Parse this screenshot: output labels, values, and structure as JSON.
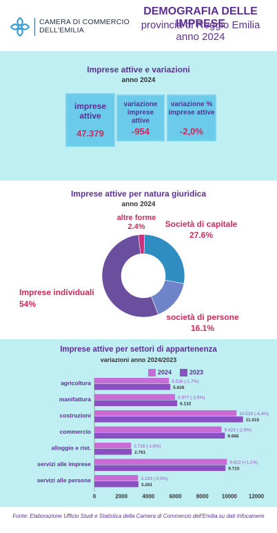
{
  "header": {
    "org_line1": "CAMERA DI COMMERCIO",
    "org_line2": "DELL'EMILIA",
    "title": "DEMOGRAFIA DELLE IMPRESE",
    "subtitle1": "provincia di Reggio Emilia",
    "subtitle2": "anno 2024"
  },
  "panel1": {
    "title": "Imprese attive e variazioni",
    "subtitle": "anno 2024",
    "kpis": [
      {
        "label": "imprese attive",
        "value": "47.379"
      },
      {
        "label": "variazione imprese attive",
        "value": "-954"
      },
      {
        "label": "variazione % imprese attive",
        "value": "-2,0%"
      }
    ]
  },
  "panel2": {
    "title": "Imprese attive per natura giuridica",
    "subtitle": "anno 2024"
  },
  "panel3": {
    "title": "Imprese attive per settori di appartenenza",
    "subtitle": "variazioni anno 2024/2023"
  },
  "footer": "Fonte: Elaborazione Ufficio Studi e Statistica della Camera di Commercio dell'Emilia su dati Infocamere",
  "chart_data": [
    {
      "type": "pie",
      "title": "Imprese attive per natura giuridica",
      "subtitle": "anno 2024",
      "slices": [
        {
          "name": "Società di capitale",
          "value": 27.6,
          "label": "27.6%",
          "color": "#2f8dc2"
        },
        {
          "name": "società di persone",
          "value": 16.1,
          "label": "16.1%",
          "color": "#6f84c8"
        },
        {
          "name": "Imprese individuali",
          "value": 54,
          "label": "54%",
          "color": "#6a4f9e"
        },
        {
          "name": "altre forme",
          "value": 2.4,
          "label": "2.4%",
          "color": "#c8307a"
        }
      ]
    },
    {
      "type": "bar",
      "orientation": "horizontal",
      "title": "Imprese attive per settori di appartenenza",
      "subtitle": "variazioni anno 2024/2023",
      "categories": [
        "agricoltura",
        "manifattura",
        "costruzioni",
        "commercio",
        "alloggio e rist.",
        "servizi alle imprese",
        "servizi alle persone"
      ],
      "series": [
        {
          "name": "2024",
          "color": "#c76bd6",
          "values": [
            5528,
            5977,
            10533,
            9423,
            2718,
            9822,
            3233
          ],
          "labels": [
            "5.528 (-1,7%)",
            "5.977 (-2,5%)",
            "10.533 (-4,4%)",
            "9.423 (-2,5%)",
            "2.718 (-1,6%)",
            "9.822 (+1,1%)",
            "3.233  (-0,9%)"
          ]
        },
        {
          "name": "2023",
          "color": "#8a4fc0",
          "values": [
            5626,
            6132,
            11015,
            9666,
            2761,
            9715,
            3261
          ],
          "labels": [
            "5.626",
            "6.132",
            "11.015",
            "9.666",
            "2.761",
            "9.715",
            "3.261"
          ]
        }
      ],
      "xlim": [
        0,
        12000
      ],
      "xticks": [
        0,
        2000,
        4000,
        6000,
        8000,
        10000,
        12000
      ],
      "legend": "top"
    }
  ]
}
